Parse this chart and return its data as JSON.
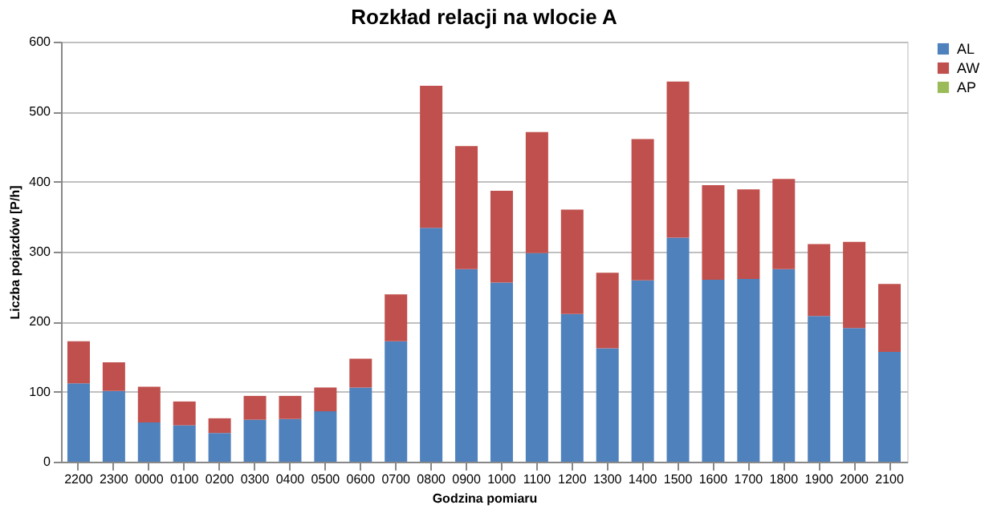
{
  "chart_data": {
    "type": "bar",
    "title": "Rozkład relacji na wlocie A",
    "xlabel": "Godzina pomiaru",
    "ylabel": "Liczba pojazdów [P/h]",
    "categories": [
      "2200",
      "2300",
      "0000",
      "0100",
      "0200",
      "0300",
      "0400",
      "0500",
      "0600",
      "0700",
      "0800",
      "0900",
      "1000",
      "1100",
      "1200",
      "1300",
      "1400",
      "1500",
      "1600",
      "1700",
      "1800",
      "1900",
      "2000",
      "2100"
    ],
    "stacked": true,
    "series": [
      {
        "name": "AL",
        "color": "#4f81bd",
        "values": [
          112,
          101,
          56,
          52,
          41,
          60,
          61,
          72,
          106,
          172,
          334,
          275,
          256,
          298,
          211,
          162,
          259,
          320,
          260,
          261,
          275,
          208,
          191,
          157
        ]
      },
      {
        "name": "AW",
        "color": "#c0504d",
        "values": [
          60,
          41,
          51,
          34,
          21,
          34,
          33,
          34,
          41,
          67,
          203,
          176,
          131,
          173,
          149,
          108,
          202,
          223,
          135,
          128,
          129,
          103,
          123,
          97
        ]
      },
      {
        "name": "AP",
        "color": "#9bbb59",
        "values": [
          0,
          0,
          0,
          0,
          0,
          0,
          0,
          0,
          0,
          0,
          0,
          0,
          0,
          0,
          0,
          0,
          0,
          0,
          0,
          0,
          0,
          0,
          0,
          0
        ]
      }
    ],
    "ylim": [
      0,
      600
    ],
    "yticks": [
      0,
      100,
      200,
      300,
      400,
      500,
      600
    ],
    "grid": "y",
    "legend": "right"
  }
}
